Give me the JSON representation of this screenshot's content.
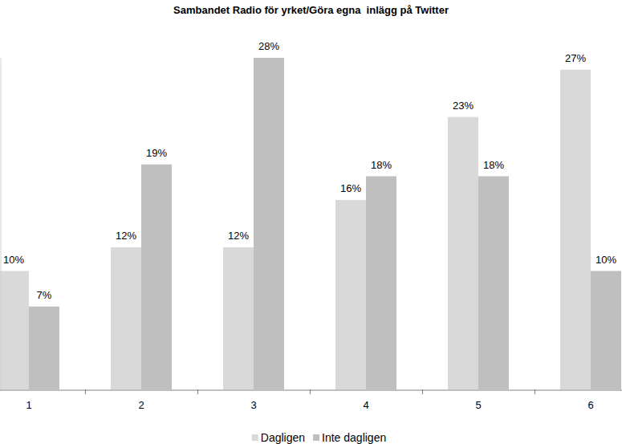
{
  "chart_data": {
    "type": "bar",
    "title": "Sambandet Radio för yrket/Göra egna  inlägg på Twitter",
    "categories": [
      "1",
      "2",
      "3",
      "4",
      "5",
      "6"
    ],
    "series": [
      {
        "name": "Dagligen",
        "color": "#d9d9d9",
        "values": [
          10,
          12,
          12,
          16,
          23,
          27
        ],
        "value_labels": [
          "10%",
          "12%",
          "12%",
          "16%",
          "23%",
          "27%"
        ]
      },
      {
        "name": "Inte dagligen",
        "color": "#bfbfbf",
        "values": [
          7,
          19,
          28,
          18,
          18,
          10
        ],
        "value_labels": [
          "7%",
          "19%",
          "28%",
          "18%",
          "18%",
          "10%"
        ]
      }
    ],
    "ylim": [
      0,
      28
    ],
    "data_labels": true,
    "tick_labels": "x",
    "legend": "bottom"
  }
}
